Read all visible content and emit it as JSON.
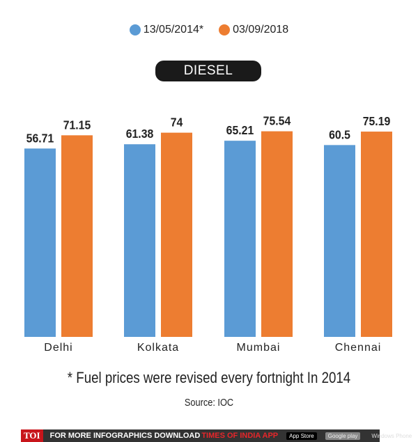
{
  "chart_data": {
    "type": "bar",
    "title": "DIESEL",
    "categories": [
      "Delhi",
      "Kolkata",
      "Mumbai",
      "Chennai"
    ],
    "series": [
      {
        "name": "13/05/2014*",
        "color": "#5b9bd5",
        "values": [
          56.71,
          61.38,
          65.21,
          60.5
        ]
      },
      {
        "name": "03/09/2018",
        "color": "#ed7d31",
        "values": [
          71.15,
          74,
          75.54,
          75.19
        ]
      }
    ],
    "data_labels": [
      [
        "56.71",
        "61.38",
        "65.21",
        "60.5"
      ],
      [
        "71.15",
        "74",
        "75.54",
        "75.19"
      ]
    ],
    "legend_position": "top-center",
    "grid": false
  },
  "footnote": "* Fuel prices were revised every fortnight In 2014",
  "source": "Source: IOC",
  "banner": {
    "logo": "TOI",
    "text": "FOR MORE  INFOGRAPHICS DOWNLOAD",
    "highlight": "TIMES OF INDIA  APP",
    "app_store": "App Store",
    "google_play": "Google play",
    "windows_phone": "Windows Phone"
  }
}
